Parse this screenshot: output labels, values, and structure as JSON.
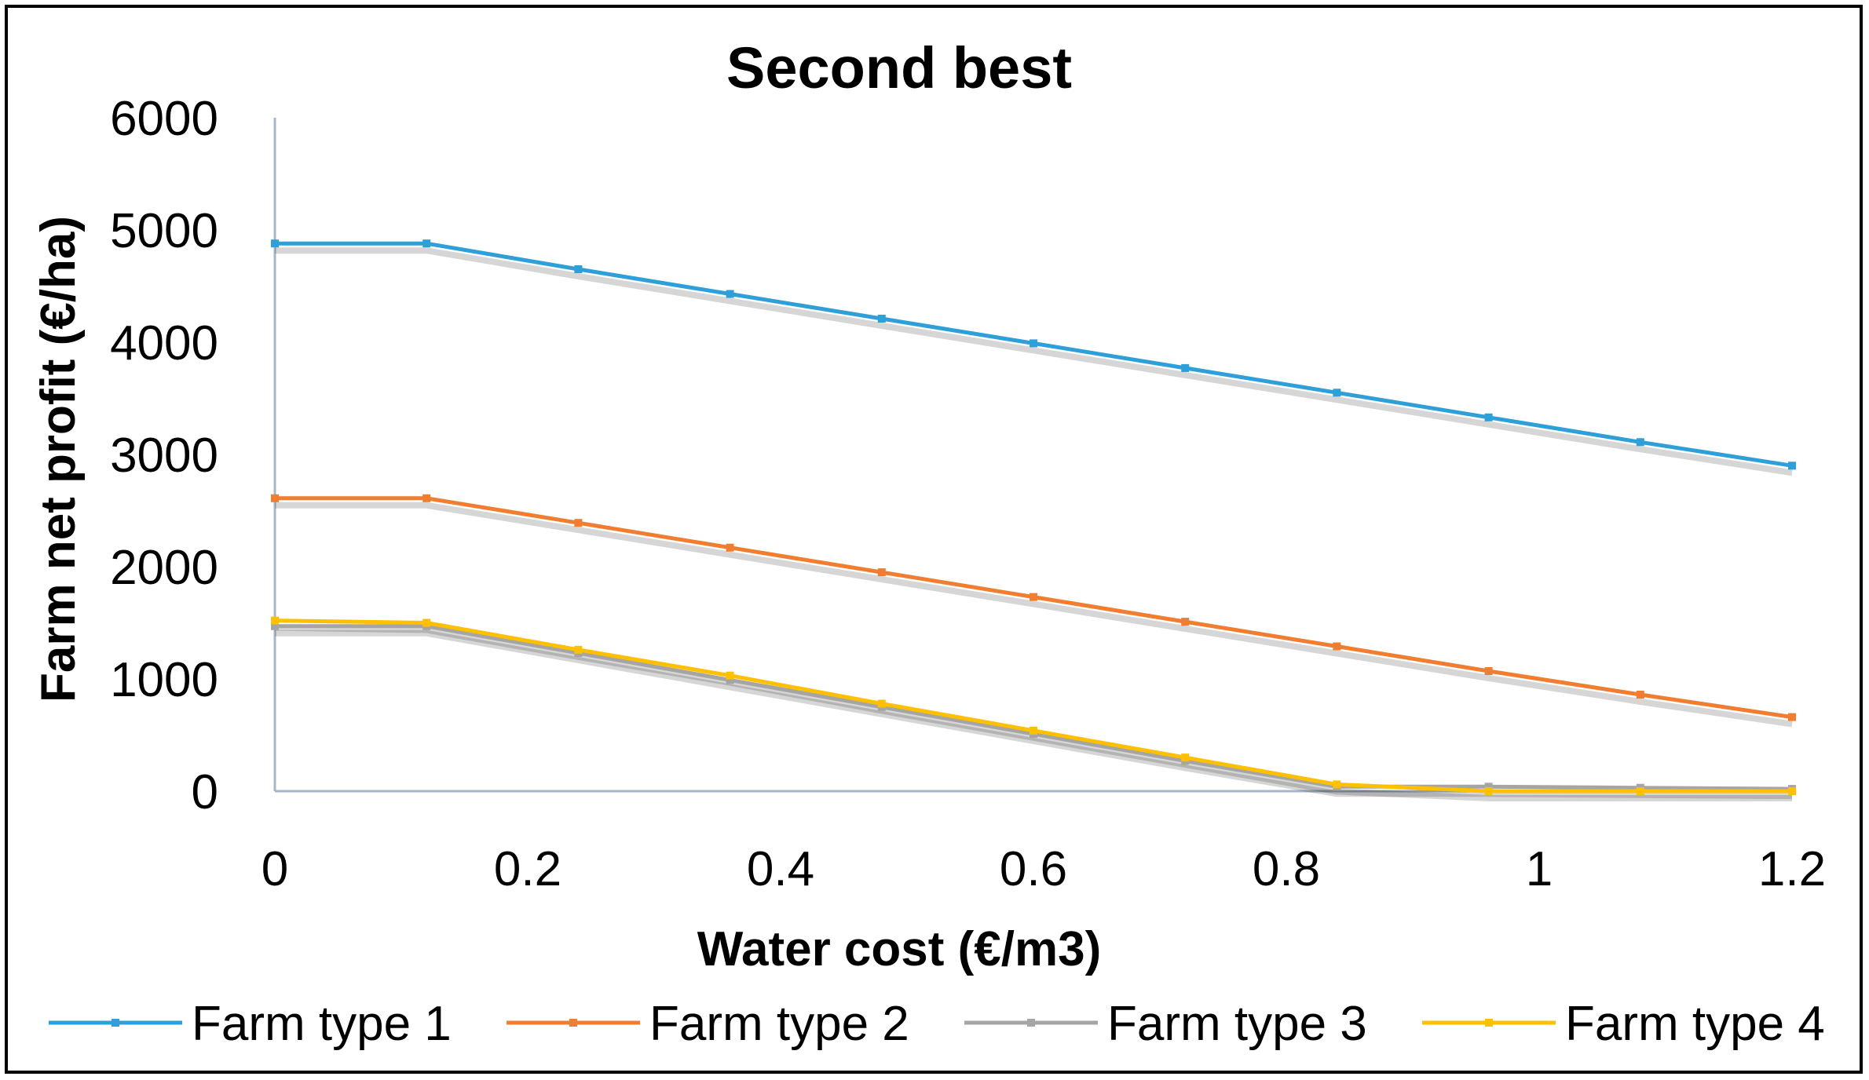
{
  "chart_data": {
    "type": "line",
    "title": "Second best",
    "xlabel": "Water cost (€/m3)",
    "ylabel": "Farm net profit (€/ha)",
    "xlim": [
      0,
      1.2
    ],
    "ylim": [
      0,
      6000
    ],
    "xticks": [
      0,
      0.2,
      0.4,
      0.6,
      0.8,
      1,
      1.2
    ],
    "yticks": [
      0,
      1000,
      2000,
      3000,
      4000,
      5000,
      6000
    ],
    "x": [
      0,
      0.12,
      0.24,
      0.36,
      0.48,
      0.6,
      0.72,
      0.84,
      0.96,
      1.08,
      1.2
    ],
    "legend_position": "bottom",
    "series": [
      {
        "name": "Farm type 1",
        "color": "#2E9FD8",
        "values": [
          4880,
          4880,
          4650,
          4430,
          4210,
          3990,
          3770,
          3550,
          3330,
          3110,
          2900
        ]
      },
      {
        "name": "Farm type 2",
        "color": "#F07D30",
        "values": [
          2610,
          2610,
          2390,
          2170,
          1950,
          1730,
          1510,
          1290,
          1070,
          860,
          660
        ]
      },
      {
        "name": "Farm type 3",
        "color": "#A5A5A5",
        "values": [
          1470,
          1470,
          1230,
          990,
          750,
          510,
          270,
          40,
          40,
          30,
          20
        ]
      },
      {
        "name": "Farm type 4",
        "color": "#FFC000",
        "values": [
          1520,
          1500,
          1260,
          1030,
          780,
          540,
          300,
          60,
          0,
          0,
          0
        ]
      }
    ]
  }
}
